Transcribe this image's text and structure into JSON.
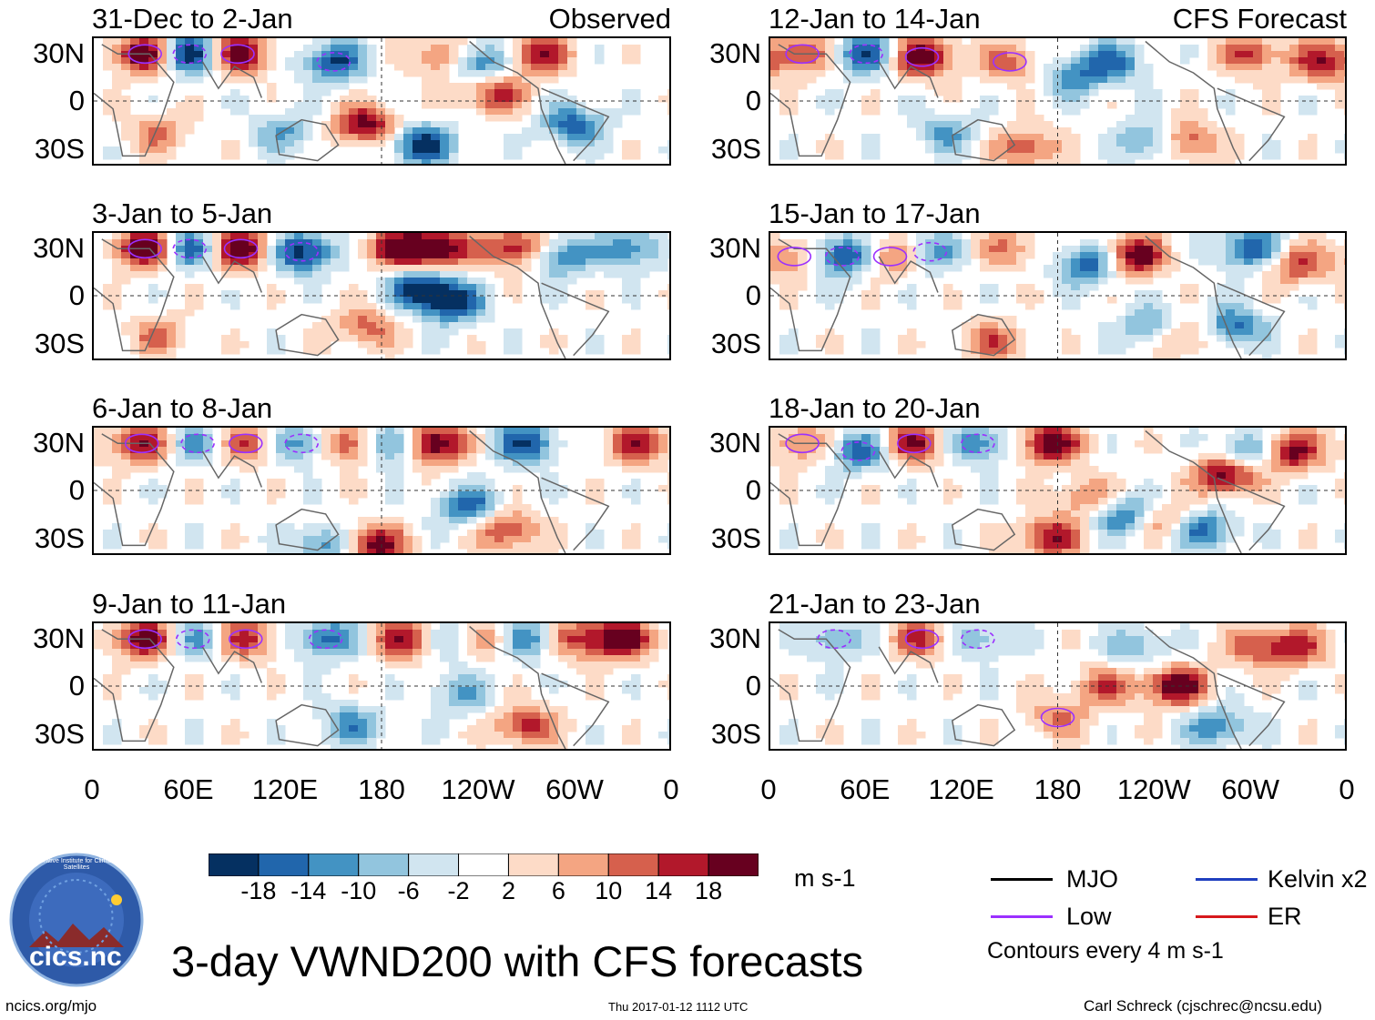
{
  "figure": {
    "title": "3-day VWND200 with CFS forecasts",
    "left_column_label": "Observed",
    "right_column_label": "CFS Forecast",
    "units": "m s-1",
    "contour_note": "Contours every 4 m s-1",
    "footer_left": "ncics.org/mjo",
    "footer_center": "Thu 2017-01-12 1112 UTC",
    "footer_right": "Carl Schreck (cjschrec@ncsu.edu)",
    "logo_text": "cics.nc",
    "logo_ring_text": "Cooperative Institute for Climate and Satellites"
  },
  "axes": {
    "lat_labels": [
      "30N",
      "0",
      "30S"
    ],
    "lon_labels": [
      "0",
      "60E",
      "120E",
      "180",
      "120W",
      "60W",
      "0"
    ]
  },
  "legend": {
    "items": [
      {
        "label": "MJO",
        "color": "#000000"
      },
      {
        "label": "Kelvin x2",
        "color": "#1f3fbf"
      },
      {
        "label": "Low",
        "color": "#9b30ff"
      },
      {
        "label": "ER",
        "color": "#d7191c"
      }
    ]
  },
  "chart_data": {
    "type": "heatmap",
    "variable": "200-hPa meridional wind (3-day mean)",
    "x_range": [
      0,
      360
    ],
    "y_range": [
      -40,
      40
    ],
    "colorbar": {
      "levels": [
        -18,
        -14,
        -10,
        -6,
        -2,
        2,
        6,
        10,
        14,
        18
      ],
      "tick_labels": [
        "-18",
        "-14",
        "-10",
        "-6",
        "-2",
        "2",
        "6",
        "10",
        "14",
        "18"
      ],
      "colors": [
        "#053061",
        "#2166ac",
        "#4393c3",
        "#92c5de",
        "#d1e5f0",
        "#ffffff",
        "#fddbc7",
        "#f4a582",
        "#d6604d",
        "#b2182b",
        "#67001f"
      ]
    },
    "panels": [
      {
        "id": "p1",
        "title": "31-Dec to 2-Jan",
        "source": "Observed",
        "anomalies": [
          [
            32,
            30,
            24
          ],
          [
            60,
            30,
            -24
          ],
          [
            90,
            30,
            22
          ],
          [
            150,
            25,
            -18
          ],
          [
            170,
            -15,
            20
          ],
          [
            205,
            -28,
            -20
          ],
          [
            220,
            28,
            16
          ],
          [
            240,
            25,
            -20
          ],
          [
            250,
            5,
            16
          ],
          [
            278,
            30,
            18
          ],
          [
            300,
            -15,
            -16
          ],
          [
            120,
            -20,
            -10
          ],
          [
            40,
            -20,
            10
          ]
        ]
      },
      {
        "id": "p2",
        "title": "12-Jan to 14-Jan",
        "source": "CFS Forecast",
        "anomalies": [
          [
            20,
            30,
            14
          ],
          [
            60,
            30,
            -18
          ],
          [
            95,
            28,
            22
          ],
          [
            150,
            25,
            12
          ],
          [
            190,
            15,
            -12
          ],
          [
            215,
            25,
            -14
          ],
          [
            240,
            -25,
            -16
          ],
          [
            258,
            -25,
            18
          ],
          [
            300,
            30,
            14
          ],
          [
            345,
            25,
            16
          ],
          [
            110,
            -20,
            -10
          ],
          [
            160,
            -30,
            14
          ]
        ]
      },
      {
        "id": "p3",
        "title": "3-Jan to 5-Jan",
        "source": "Observed",
        "anomalies": [
          [
            32,
            30,
            24
          ],
          [
            60,
            30,
            -18
          ],
          [
            92,
            30,
            24
          ],
          [
            130,
            28,
            -22
          ],
          [
            190,
            30,
            18
          ],
          [
            205,
            5,
            -22
          ],
          [
            215,
            30,
            24
          ],
          [
            225,
            -5,
            -18
          ],
          [
            265,
            30,
            20
          ],
          [
            290,
            25,
            -16
          ],
          [
            170,
            -20,
            12
          ],
          [
            40,
            -25,
            10
          ],
          [
            335,
            30,
            -14
          ]
        ]
      },
      {
        "id": "p4",
        "title": "15-Jan to 17-Jan",
        "source": "CFS Forecast",
        "anomalies": [
          [
            15,
            25,
            12
          ],
          [
            45,
            25,
            -22
          ],
          [
            75,
            25,
            14
          ],
          [
            100,
            28,
            -12
          ],
          [
            150,
            30,
            10
          ],
          [
            200,
            20,
            -18
          ],
          [
            228,
            25,
            22
          ],
          [
            240,
            -20,
            -14
          ],
          [
            258,
            -25,
            14
          ],
          [
            300,
            30,
            -18
          ],
          [
            290,
            -20,
            -16
          ],
          [
            330,
            20,
            14
          ],
          [
            140,
            -30,
            12
          ]
        ]
      },
      {
        "id": "p5",
        "title": "6-Jan to 8-Jan",
        "source": "Observed",
        "anomalies": [
          [
            30,
            30,
            18
          ],
          [
            65,
            30,
            -12
          ],
          [
            95,
            30,
            14
          ],
          [
            130,
            30,
            -14
          ],
          [
            162,
            30,
            20
          ],
          [
            185,
            30,
            -22
          ],
          [
            212,
            30,
            26
          ],
          [
            235,
            -10,
            -16
          ],
          [
            258,
            -25,
            16
          ],
          [
            270,
            30,
            -18
          ],
          [
            340,
            30,
            16
          ],
          [
            175,
            -35,
            22
          ],
          [
            145,
            -35,
            -14
          ]
        ]
      },
      {
        "id": "p6",
        "title": "18-Jan to 20-Jan",
        "source": "CFS Forecast",
        "anomalies": [
          [
            20,
            30,
            12
          ],
          [
            55,
            25,
            -16
          ],
          [
            90,
            30,
            18
          ],
          [
            130,
            30,
            -14
          ],
          [
            175,
            30,
            22
          ],
          [
            200,
            -5,
            12
          ],
          [
            220,
            -15,
            -16
          ],
          [
            250,
            -20,
            12
          ],
          [
            270,
            -25,
            -18
          ],
          [
            285,
            10,
            22
          ],
          [
            300,
            25,
            -16
          ],
          [
            325,
            25,
            22
          ],
          [
            175,
            -30,
            18
          ]
        ]
      },
      {
        "id": "p7",
        "title": "9-Jan to 11-Jan",
        "source": "Observed",
        "anomalies": [
          [
            32,
            30,
            22
          ],
          [
            62,
            30,
            -12
          ],
          [
            95,
            30,
            16
          ],
          [
            145,
            30,
            -16
          ],
          [
            195,
            30,
            18
          ],
          [
            225,
            30,
            -10
          ],
          [
            250,
            30,
            14
          ],
          [
            270,
            30,
            -18
          ],
          [
            300,
            30,
            14
          ],
          [
            330,
            30,
            22
          ],
          [
            160,
            -25,
            -12
          ],
          [
            230,
            -5,
            -10
          ],
          [
            270,
            -25,
            16
          ]
        ]
      },
      {
        "id": "p8",
        "title": "21-Jan to 23-Jan",
        "source": "CFS Forecast",
        "anomalies": [
          [
            40,
            30,
            -10
          ],
          [
            95,
            30,
            14
          ],
          [
            130,
            30,
            -10
          ],
          [
            180,
            -20,
            10
          ],
          [
            210,
            0,
            12
          ],
          [
            255,
            0,
            22
          ],
          [
            280,
            -25,
            -14
          ],
          [
            305,
            25,
            12
          ],
          [
            330,
            25,
            14
          ],
          [
            230,
            25,
            -10
          ]
        ]
      }
    ]
  }
}
